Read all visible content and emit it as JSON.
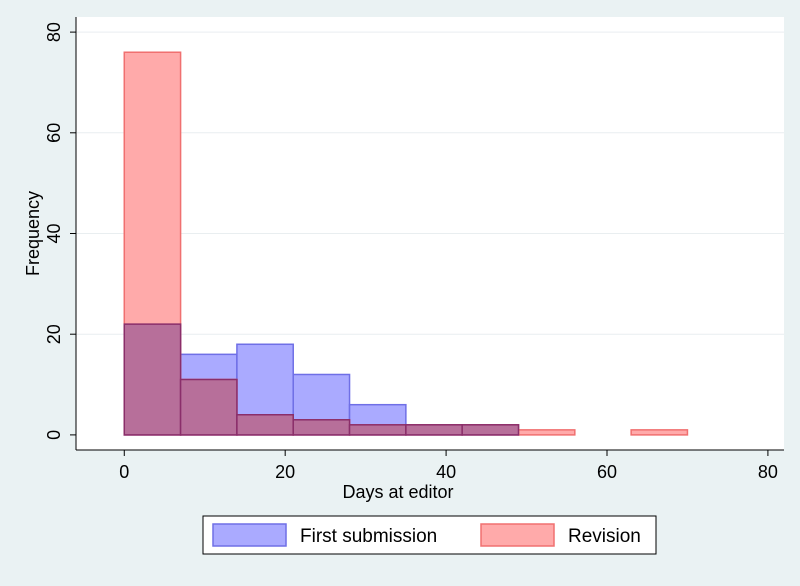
{
  "chart_data": {
    "type": "bar",
    "title": "",
    "xlabel": "Days at editor",
    "ylabel": "Frequency",
    "xlim": [
      -6,
      82
    ],
    "ylim": [
      -3,
      83
    ],
    "xticks": [
      0,
      20,
      40,
      60,
      80
    ],
    "yticks": [
      0,
      20,
      40,
      60,
      80
    ],
    "grid": true,
    "legend_position": "bottom",
    "series": [
      {
        "name": "First submission",
        "fill": "#aaaaff",
        "stroke": "#6f6fe6",
        "bins": [
          {
            "x0": 0,
            "x1": 7,
            "value": 22
          },
          {
            "x0": 7,
            "x1": 14,
            "value": 16
          },
          {
            "x0": 14,
            "x1": 21,
            "value": 18
          },
          {
            "x0": 21,
            "x1": 28,
            "value": 12
          },
          {
            "x0": 28,
            "x1": 35,
            "value": 6
          },
          {
            "x0": 35,
            "x1": 42,
            "value": 2
          },
          {
            "x0": 42,
            "x1": 49,
            "value": 2
          }
        ]
      },
      {
        "name": "Revision",
        "fill": "#ffaaaa",
        "stroke": "#f07070",
        "bins": [
          {
            "x0": 0,
            "x1": 7,
            "value": 76
          },
          {
            "x0": 7,
            "x1": 14,
            "value": 11
          },
          {
            "x0": 14,
            "x1": 21,
            "value": 4
          },
          {
            "x0": 21,
            "x1": 28,
            "value": 3
          },
          {
            "x0": 28,
            "x1": 35,
            "value": 2
          },
          {
            "x0": 35,
            "x1": 42,
            "value": 2
          },
          {
            "x0": 42,
            "x1": 49,
            "value": 2
          },
          {
            "x0": 49,
            "x1": 56,
            "value": 1
          },
          {
            "x0": 63,
            "x1": 70,
            "value": 1
          }
        ]
      }
    ],
    "colors": {
      "outer_background": "#eaf2f3",
      "plot_background": "#ffffff",
      "grid": "#e9eef0",
      "overlap_fill": "#b76f9a",
      "overlap_stroke": "#8a2e6a"
    }
  }
}
